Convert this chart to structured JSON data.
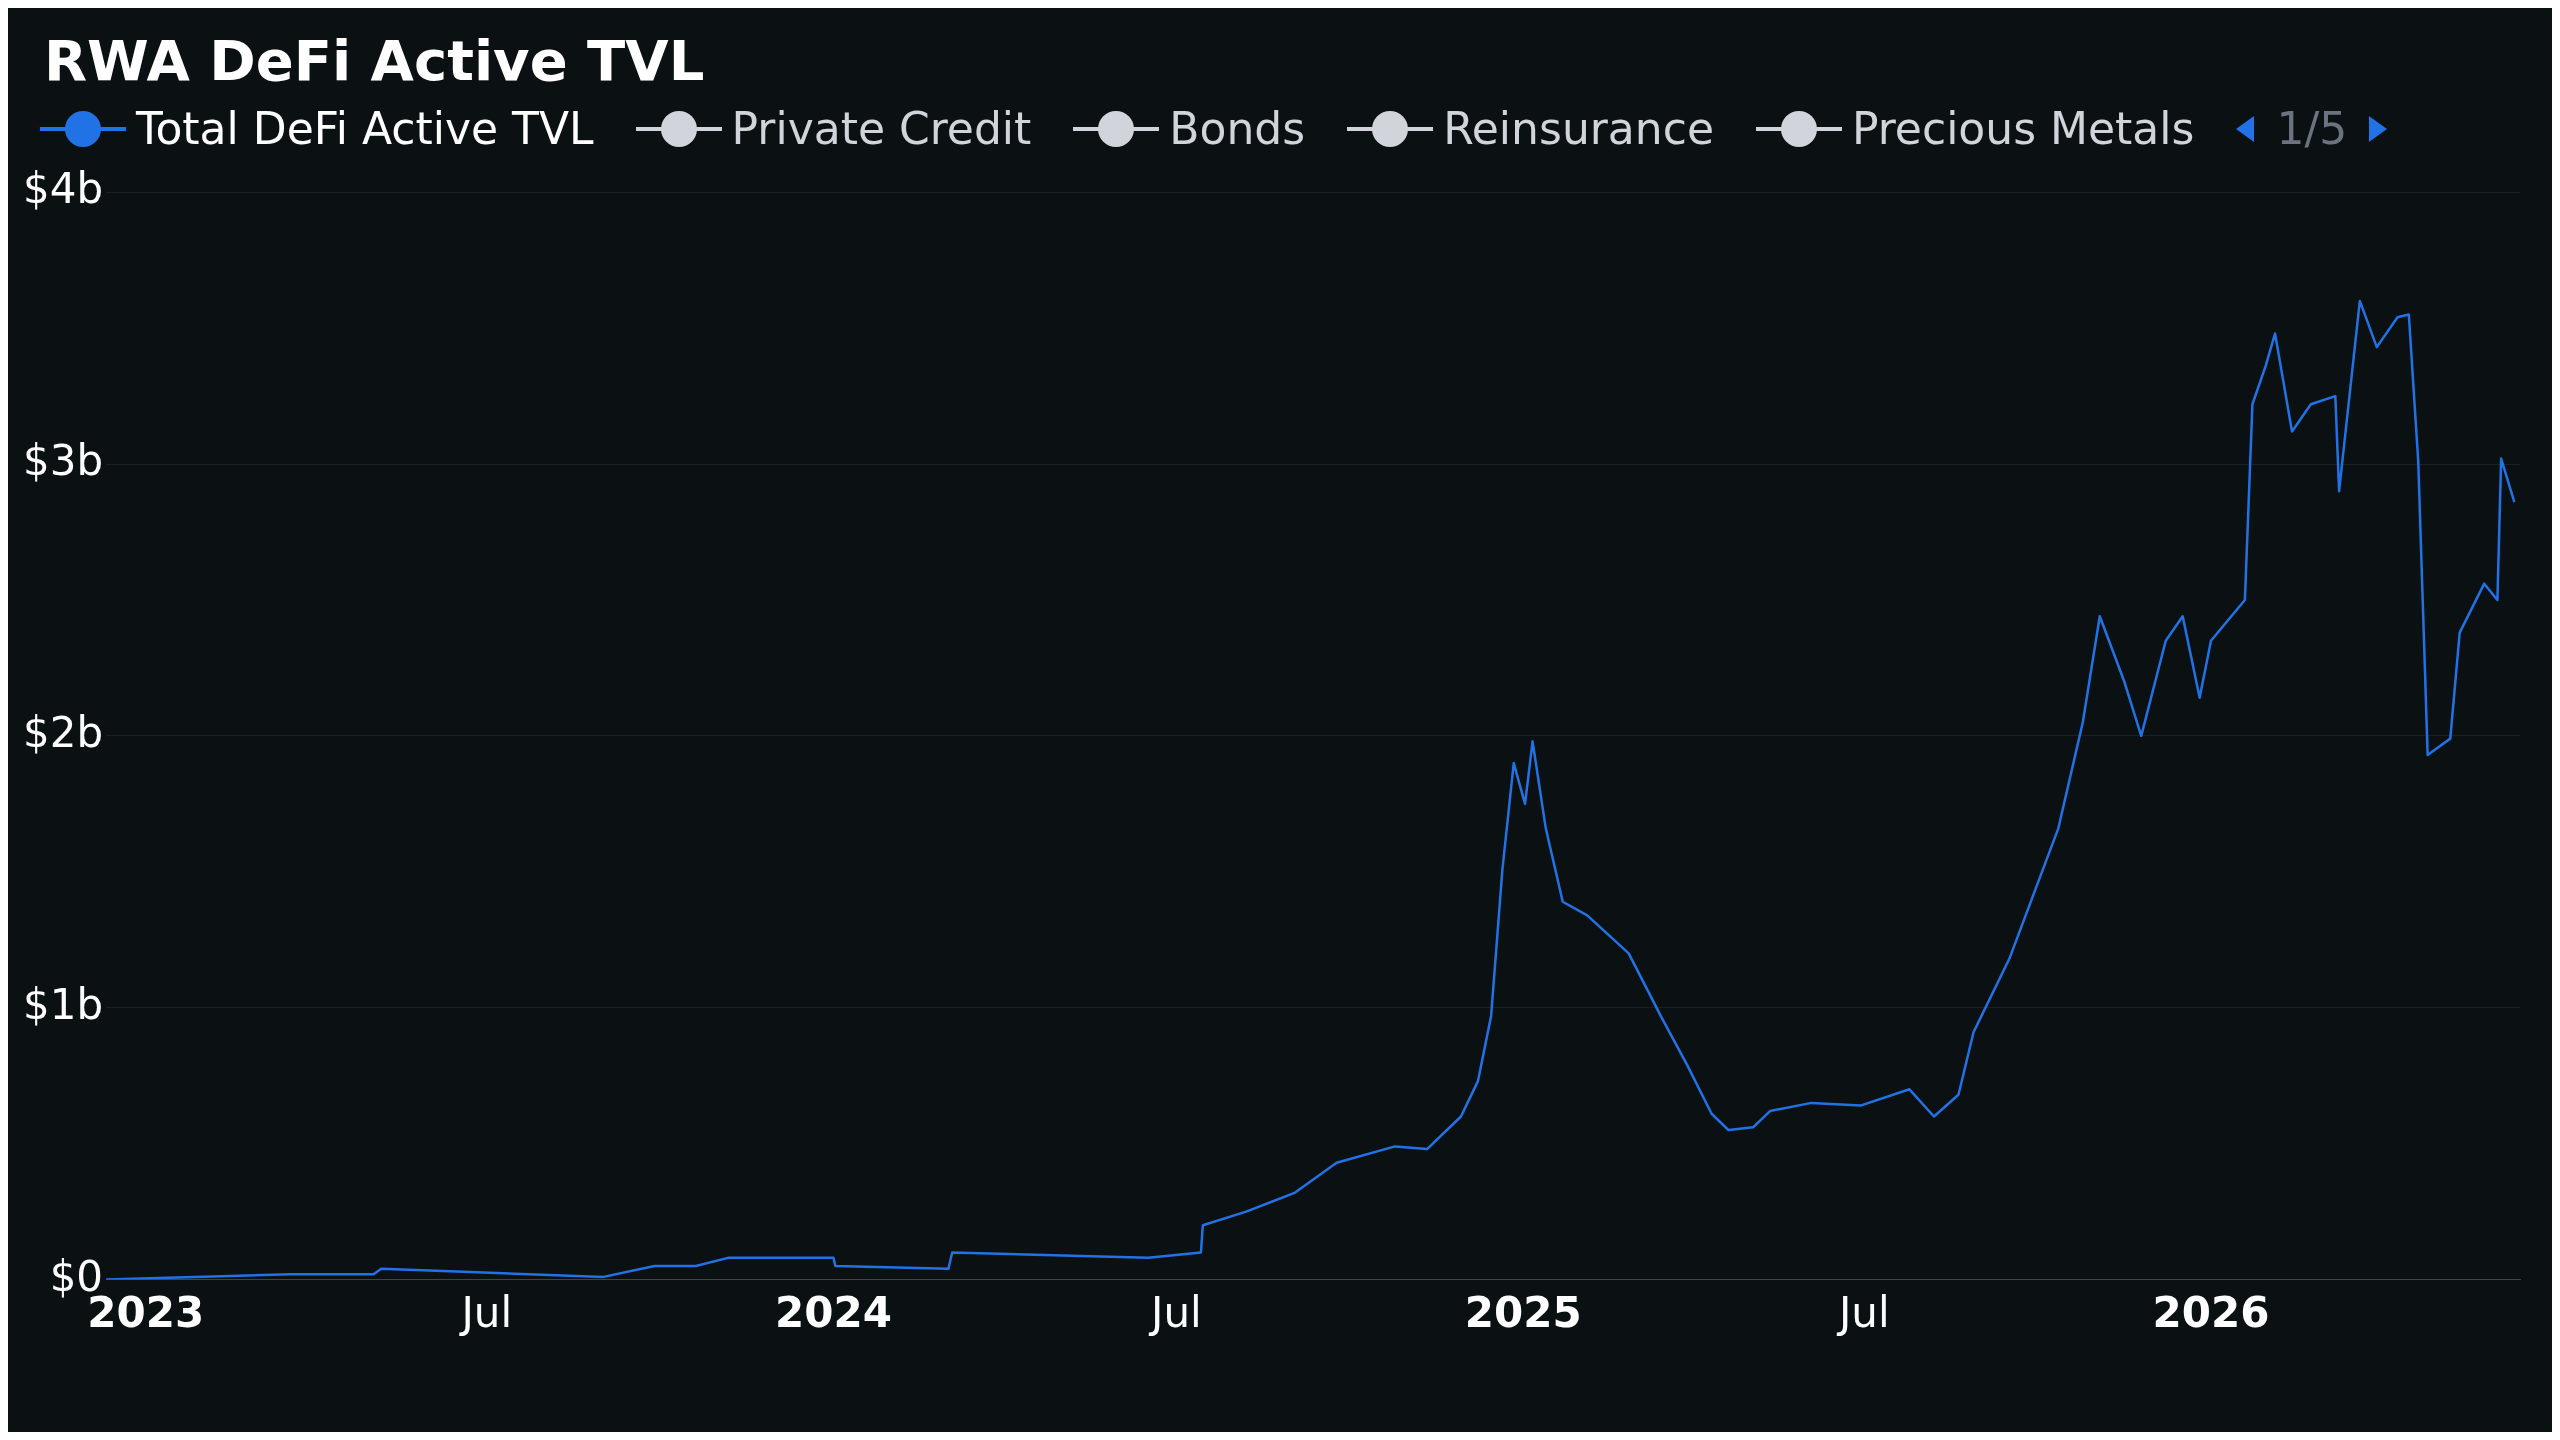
{
  "chart_data": {
    "type": "line",
    "title": "RWA DeFi Active TVL",
    "legend": "top left",
    "grid": "y",
    "marker": "none",
    "line_style": "solid",
    "x": [
      "2022-12-11",
      "2023-03-19",
      "2023-05-02",
      "2023-05-06",
      "2023-09-01",
      "2023-09-28",
      "2023-10-20",
      "2023-11-06",
      "2024-01-01",
      "2024-01-02",
      "2024-03-02",
      "2024-03-04",
      "2024-06-16",
      "2024-07-14",
      "2024-07-15",
      "2024-08-07",
      "2024-09-02",
      "2024-09-24",
      "2024-10-25",
      "2024-11-11",
      "2024-11-29",
      "2024-12-08",
      "2024-12-15",
      "2024-12-21",
      "2024-12-27",
      "2025-01-02",
      "2025-01-06",
      "2025-01-13",
      "2025-01-22",
      "2025-02-04",
      "2025-02-26",
      "2025-03-15",
      "2025-03-29",
      "2025-04-11",
      "2025-04-20",
      "2025-05-03",
      "2025-05-12",
      "2025-06-03",
      "2025-06-29",
      "2025-07-25",
      "2025-08-07",
      "2025-08-20",
      "2025-08-28",
      "2025-09-16",
      "2025-09-29",
      "2025-10-12",
      "2025-10-25",
      "2025-11-03",
      "2025-11-16",
      "2025-11-25",
      "2025-12-08",
      "2025-12-17",
      "2025-12-26",
      "2026-01-01",
      "2026-01-19",
      "2026-01-23",
      "2026-01-30",
      "2026-02-04",
      "2026-02-13",
      "2026-02-23",
      "2026-03-08",
      "2026-03-10",
      "2026-03-21",
      "2026-03-30",
      "2026-04-10",
      "2026-04-16",
      "2026-04-21",
      "2026-04-26",
      "2026-05-08",
      "2026-05-13",
      "2026-05-26",
      "2026-06-02",
      "2026-06-04",
      "2026-06-11"
    ],
    "series": [
      {
        "name": "Total DeFi Active TVL",
        "color": "#2172e5",
        "values": [
          0,
          0.02,
          0.02,
          0.04,
          0.01,
          0.05,
          0.05,
          0.08,
          0.08,
          0.05,
          0.04,
          0.1,
          0.08,
          0.1,
          0.2,
          0.25,
          0.32,
          0.43,
          0.49,
          0.48,
          0.6,
          0.73,
          0.97,
          1.51,
          1.9,
          1.75,
          1.98,
          1.66,
          1.39,
          1.34,
          1.2,
          0.97,
          0.79,
          0.61,
          0.55,
          0.56,
          0.62,
          0.65,
          0.64,
          0.7,
          0.6,
          0.68,
          0.91,
          1.18,
          1.42,
          1.66,
          2.05,
          2.44,
          2.2,
          2.0,
          2.35,
          2.44,
          2.14,
          2.35,
          2.5,
          3.22,
          3.36,
          3.48,
          3.12,
          3.22,
          3.25,
          2.9,
          3.6,
          3.43,
          3.54,
          3.55,
          3.01,
          1.93,
          1.99,
          2.38,
          2.56,
          2.5,
          3.02,
          2.86
        ]
      },
      {
        "name": "Private Credit",
        "color": "#d1d5db",
        "values": [
          null,
          null,
          null,
          null,
          null,
          null,
          null,
          null,
          null,
          null,
          null,
          null,
          null,
          null,
          null,
          null,
          null,
          null,
          null,
          null,
          null,
          null,
          null,
          null,
          null,
          null,
          null,
          null,
          null,
          null,
          null,
          null,
          null,
          null,
          null,
          null,
          null,
          null,
          null,
          null,
          null,
          null,
          null,
          null,
          null,
          null,
          null,
          null,
          null,
          null,
          null,
          null,
          null,
          null,
          null,
          null,
          null,
          null,
          null,
          null,
          null,
          null,
          null,
          null,
          null,
          null,
          null,
          null,
          null,
          null,
          null,
          null,
          null,
          null
        ]
      },
      {
        "name": "Bonds",
        "color": "#d1d5db",
        "values": [
          null,
          null,
          null,
          null,
          null,
          null,
          null,
          null,
          null,
          null,
          null,
          null,
          null,
          null,
          null,
          null,
          null,
          null,
          null,
          null,
          null,
          null,
          null,
          null,
          null,
          null,
          null,
          null,
          null,
          null,
          null,
          null,
          null,
          null,
          null,
          null,
          null,
          null,
          null,
          null,
          null,
          null,
          null,
          null,
          null,
          null,
          null,
          null,
          null,
          null,
          null,
          null,
          null,
          null,
          null,
          null,
          null,
          null,
          null,
          null,
          null,
          null,
          null,
          null,
          null,
          null,
          null,
          null,
          null,
          null,
          null,
          null,
          null,
          null
        ]
      },
      {
        "name": "Reinsurance",
        "color": "#d1d5db",
        "values": [
          null,
          null,
          null,
          null,
          null,
          null,
          null,
          null,
          null,
          null,
          null,
          null,
          null,
          null,
          null,
          null,
          null,
          null,
          null,
          null,
          null,
          null,
          null,
          null,
          null,
          null,
          null,
          null,
          null,
          null,
          null,
          null,
          null,
          null,
          null,
          null,
          null,
          null,
          null,
          null,
          null,
          null,
          null,
          null,
          null,
          null,
          null,
          null,
          null,
          null,
          null,
          null,
          null,
          null,
          null,
          null,
          null,
          null,
          null,
          null,
          null,
          null,
          null,
          null,
          null,
          null,
          null,
          null,
          null,
          null,
          null,
          null,
          null,
          null
        ]
      },
      {
        "name": "Precious Metals",
        "color": "#d1d5db",
        "values": [
          null,
          null,
          null,
          null,
          null,
          null,
          null,
          null,
          null,
          null,
          null,
          null,
          null,
          null,
          null,
          null,
          null,
          null,
          null,
          null,
          null,
          null,
          null,
          null,
          null,
          null,
          null,
          null,
          null,
          null,
          null,
          null,
          null,
          null,
          null,
          null,
          null,
          null,
          null,
          null,
          null,
          null,
          null,
          null,
          null,
          null,
          null,
          null,
          null,
          null,
          null,
          null,
          null,
          null,
          null,
          null,
          null,
          null,
          null,
          null,
          null,
          null,
          null,
          null,
          null,
          null,
          null,
          null,
          null,
          null,
          null,
          null,
          null,
          null
        ]
      }
    ],
    "annotations": [
      "1/5"
    ],
    "xlim": [
      "2022-12-11",
      "2026-06-14"
    ],
    "xticks": [
      {
        "value": "2023-01-01",
        "label": "2023"
      },
      {
        "value": "2023-07-01",
        "label": "Jul"
      },
      {
        "value": "2024-01-01",
        "label": "2024"
      },
      {
        "value": "2024-07-01",
        "label": "Jul"
      },
      {
        "value": "2025-01-01",
        "label": "2025"
      },
      {
        "value": "2025-07-01",
        "label": "Jul"
      },
      {
        "value": "2026-01-01",
        "label": "2026"
      }
    ],
    "ylim": [
      0,
      4
    ],
    "yticks": [
      {
        "value": 0,
        "label": "$0"
      },
      {
        "value": 1,
        "label": "$1b"
      },
      {
        "value": 2,
        "label": "$2b"
      },
      {
        "value": 3,
        "label": "$3b"
      },
      {
        "value": 4,
        "label": "$4b"
      }
    ]
  }
}
